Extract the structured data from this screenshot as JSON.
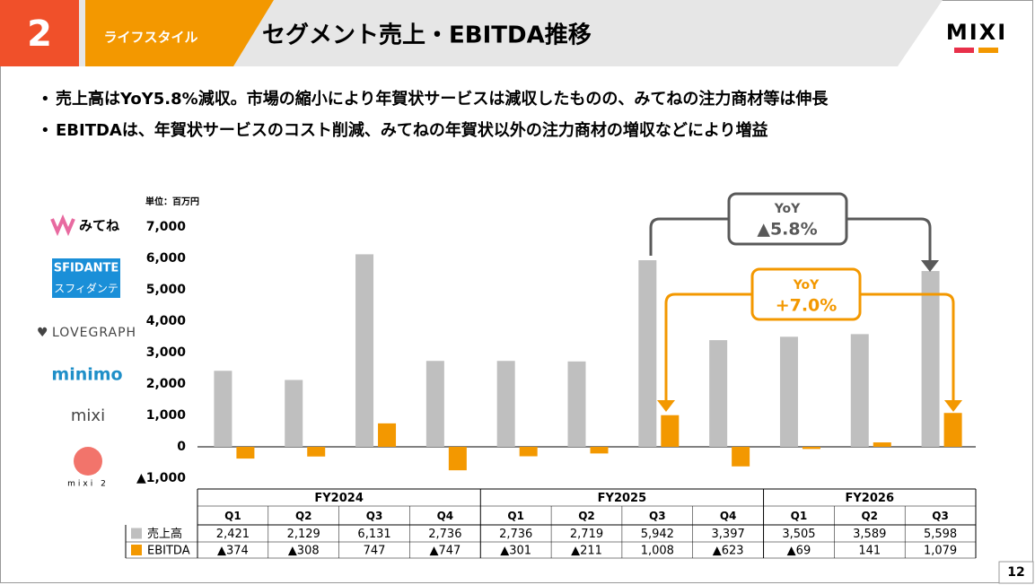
{
  "header": {
    "number": "2",
    "segment": "ライフスタイル",
    "title": "セグメント売上・EBITDA推移",
    "logo": "MIXI"
  },
  "bullets": [
    "売上高はYoY5.8%減収。市場の縮小により年賀状サービスは減収したものの、みてねの注力商材等は伸長",
    "EBITDAは、年賀状サービスのコスト削減、みてねの年賀状以外の注力商材の増収などにより増益"
  ],
  "brands": [
    "みてね",
    "SFIDANTE",
    "スフィダンテ",
    "LOVEGRAPH",
    "minimo",
    "mixi",
    "mixi 2"
  ],
  "page_number": "12",
  "chart_data": {
    "type": "bar",
    "unit": "単位：百万円",
    "groups": [
      {
        "label": "FY2024",
        "categories": [
          "Q1",
          "Q2",
          "Q3",
          "Q4"
        ]
      },
      {
        "label": "FY2025",
        "categories": [
          "Q1",
          "Q2",
          "Q3",
          "Q4"
        ]
      },
      {
        "label": "FY2026",
        "categories": [
          "Q1",
          "Q2",
          "Q3"
        ]
      }
    ],
    "series": [
      {
        "name": "売上高",
        "color": "#bfbfbf",
        "values": [
          2421,
          2129,
          6131,
          2736,
          2736,
          2719,
          5942,
          3397,
          3505,
          3589,
          5598
        ],
        "value_labels": [
          "2,421",
          "2,129",
          "6,131",
          "2,736",
          "2,736",
          "2,719",
          "5,942",
          "3,397",
          "3,505",
          "3,589",
          "5,598"
        ]
      },
      {
        "name": "EBITDA",
        "color": "#f39800",
        "values": [
          -374,
          -308,
          747,
          -747,
          -301,
          -211,
          1008,
          -623,
          -69,
          141,
          1079
        ],
        "value_labels": [
          "▲374",
          "▲308",
          "747",
          "▲747",
          "▲301",
          "▲211",
          "1,008",
          "▲623",
          "▲69",
          "141",
          "1,079"
        ]
      }
    ],
    "ylim": [
      -1000,
      7000
    ],
    "yticks": [
      {
        "value": -1000,
        "label": "▲1,000"
      },
      0,
      {
        "value": 1000,
        "label": "1,000"
      },
      {
        "value": 2000,
        "label": "2,000"
      },
      {
        "value": 3000,
        "label": "3,000"
      },
      {
        "value": 4000,
        "label": "4,000"
      },
      {
        "value": 5000,
        "label": "5,000"
      },
      {
        "value": 6000,
        "label": "6,000"
      },
      {
        "value": 7000,
        "label": "7,000"
      }
    ],
    "grid": false,
    "annotations": [
      {
        "title": "YoY",
        "text": "▲5.8%"
      },
      {
        "title": "YoY",
        "text": "+7.0%"
      }
    ]
  }
}
